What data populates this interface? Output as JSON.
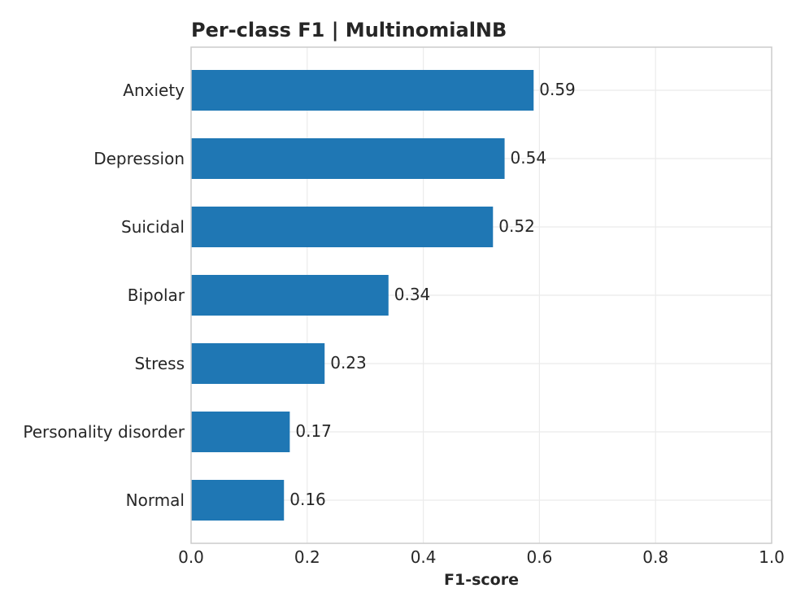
{
  "chart_data": {
    "type": "bar",
    "orientation": "horizontal",
    "title": "Per-class F1 | MultinomialNB",
    "xlabel": "F1-score",
    "ylabel": "",
    "xlim": [
      0.0,
      1.0
    ],
    "xticks": [
      "0.0",
      "0.2",
      "0.4",
      "0.6",
      "0.8",
      "1.0"
    ],
    "categories": [
      "Anxiety",
      "Depression",
      "Suicidal",
      "Bipolar",
      "Stress",
      "Personality disorder",
      "Normal"
    ],
    "values": [
      0.59,
      0.54,
      0.52,
      0.34,
      0.23,
      0.17,
      0.16
    ],
    "data_labels": [
      "0.59",
      "0.54",
      "0.52",
      "0.34",
      "0.23",
      "0.17",
      "0.16"
    ],
    "grid": true,
    "bar_color": "#1f77b4"
  }
}
